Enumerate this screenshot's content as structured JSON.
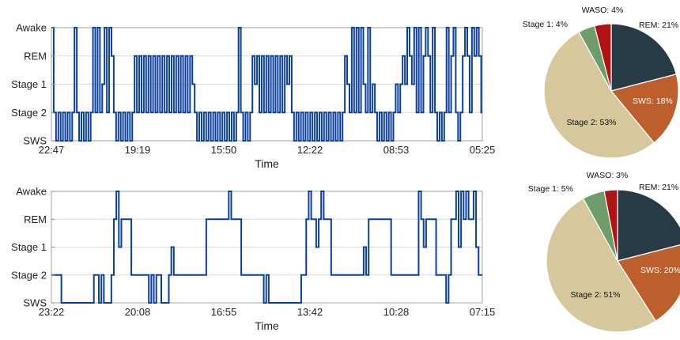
{
  "chart_data": [
    {
      "type": "line",
      "subtype": "step-hypnogram",
      "xlabel": "Time",
      "x_ticks": [
        "22:47",
        "19:19",
        "15:50",
        "12:22",
        "08:53",
        "05:25"
      ],
      "y_categories": [
        "SWS",
        "Stage 2",
        "Stage 1",
        "REM",
        "Awake"
      ],
      "ylim": [
        0,
        4
      ],
      "grid": true,
      "color": "#0a3f9e",
      "series": [
        {
          "levels": [
            4,
            4,
            1,
            1,
            0,
            0,
            1,
            1,
            0,
            0,
            1,
            1,
            0,
            0,
            1,
            1,
            0,
            0,
            1,
            1,
            4,
            4,
            1,
            1,
            0,
            0,
            1,
            1,
            0,
            0,
            1,
            1,
            0,
            0,
            1,
            1,
            4,
            4,
            1,
            1,
            4,
            4,
            1,
            1,
            2,
            2,
            4,
            4,
            1,
            1,
            4,
            4,
            3,
            3,
            1,
            1,
            0,
            0,
            1,
            1,
            0,
            0,
            1,
            1,
            0,
            0,
            1,
            1,
            0,
            0,
            1,
            1,
            3,
            3,
            1,
            1,
            3,
            3,
            1,
            1,
            3,
            3,
            1,
            1,
            3,
            3,
            1,
            1,
            3,
            3,
            1,
            1,
            3,
            3,
            1,
            1,
            3,
            3,
            1,
            1,
            3,
            3,
            1,
            1,
            3,
            3,
            1,
            1,
            3,
            3,
            1,
            1,
            3,
            3,
            1,
            1,
            3,
            3,
            1,
            1,
            3,
            3,
            2,
            2,
            1,
            1,
            0,
            0,
            1,
            1,
            0,
            0,
            1,
            1,
            0,
            0,
            1,
            1,
            0,
            0,
            1,
            1,
            0,
            0,
            1,
            1,
            0,
            0,
            1,
            1,
            0,
            0,
            1,
            1,
            0,
            0,
            1,
            1,
            0,
            0,
            1,
            1,
            4,
            4,
            1,
            1,
            0,
            0,
            1,
            1,
            0,
            0,
            1,
            1,
            3,
            3,
            2,
            2,
            3,
            3,
            1,
            1,
            3,
            3,
            1,
            1,
            3,
            3,
            1,
            1,
            3,
            3,
            1,
            1,
            3,
            3,
            1,
            1,
            3,
            3,
            1,
            1,
            3,
            3,
            2,
            2,
            3,
            3,
            1,
            1,
            0,
            0,
            1,
            1,
            0,
            0,
            1,
            1,
            0,
            0,
            1,
            1,
            0,
            0,
            1,
            1,
            0,
            0,
            1,
            1,
            0,
            0,
            1,
            1,
            0,
            0,
            1,
            1,
            0,
            0,
            1,
            1,
            0,
            0,
            1,
            1,
            0,
            0,
            1,
            1,
            0,
            0,
            1,
            1,
            3,
            3,
            2,
            2,
            1,
            1,
            4,
            4,
            1,
            1,
            4,
            4,
            1,
            1,
            4,
            4,
            2,
            2,
            1,
            1,
            4,
            4,
            1,
            1,
            2,
            2,
            1,
            1,
            0,
            0,
            1,
            1,
            0,
            0,
            1,
            1,
            0,
            0,
            1,
            1,
            0,
            0,
            1,
            1,
            2,
            2,
            1,
            1,
            2,
            2,
            3,
            3,
            2,
            2,
            4,
            4,
            3,
            3,
            2,
            2,
            4,
            4,
            1,
            1,
            4,
            4,
            1,
            1,
            3,
            3,
            4,
            4,
            3,
            3,
            1,
            1,
            4,
            4,
            1,
            1,
            0,
            0,
            1,
            1,
            0,
            0,
            1,
            1,
            4,
            4,
            1,
            1,
            3,
            3,
            4,
            4,
            1,
            1,
            0,
            0,
            1,
            1,
            3,
            3,
            4,
            4,
            3,
            3,
            1,
            1,
            4,
            4,
            3,
            3,
            4,
            4,
            3,
            3,
            1,
            1
          ],
          "step": 0.5
        }
      ]
    },
    {
      "type": "pie",
      "slices": [
        {
          "label": "REM",
          "value": 21,
          "text": "REM: 21%",
          "color": "#273b47"
        },
        {
          "label": "SWS",
          "value": 18,
          "text": "SWS: 18%",
          "color": "#bd5f2c"
        },
        {
          "label": "Stage 2",
          "value": 53,
          "text": "Stage 2: 53%",
          "color": "#d6c89c"
        },
        {
          "label": "Stage 1",
          "value": 4,
          "text": "Stage 1: 4%",
          "color": "#6f9c6b"
        },
        {
          "label": "WASO",
          "value": 4,
          "text": "WASO: 4%",
          "color": "#b01313"
        }
      ]
    },
    {
      "type": "line",
      "subtype": "step-hypnogram",
      "xlabel": "Time",
      "x_ticks": [
        "23:22",
        "20:08",
        "16:55",
        "13:42",
        "10:28",
        "07:15"
      ],
      "y_categories": [
        "SWS",
        "Stage 2",
        "Stage 1",
        "REM",
        "Awake"
      ],
      "ylim": [
        0,
        4
      ],
      "grid": true,
      "color": "#0a3f9e",
      "series": [
        {
          "levels": [
            1,
            1,
            1,
            1,
            1,
            1,
            1,
            1,
            0,
            0,
            0,
            0,
            0,
            0,
            0,
            0,
            0,
            0,
            0,
            0,
            0,
            0,
            0,
            0,
            0,
            0,
            0,
            0,
            0,
            0,
            0,
            0,
            0,
            0,
            1,
            1,
            1,
            1,
            0,
            0,
            1,
            1,
            0,
            0,
            0,
            0,
            0,
            0,
            1,
            1,
            3,
            3,
            4,
            4,
            2,
            2,
            3,
            3,
            3,
            3,
            3,
            3,
            3,
            3,
            1,
            1,
            1,
            1,
            1,
            1,
            1,
            1,
            1,
            1,
            1,
            1,
            1,
            1,
            0,
            0,
            1,
            1,
            0,
            0,
            1,
            1,
            1,
            1,
            0,
            0,
            0,
            0,
            0,
            0,
            1,
            1,
            2,
            2,
            1,
            1,
            1,
            1,
            1,
            1,
            1,
            1,
            1,
            1,
            1,
            1,
            1,
            1,
            1,
            1,
            1,
            1,
            1,
            1,
            1,
            1,
            1,
            1,
            1,
            1,
            3,
            3,
            3,
            3,
            3,
            3,
            3,
            3,
            3,
            3,
            3,
            3,
            3,
            3,
            3,
            3,
            3,
            3,
            4,
            4,
            3,
            3,
            3,
            3,
            3,
            3,
            3,
            3,
            1,
            1,
            1,
            1,
            1,
            1,
            1,
            1,
            1,
            1,
            1,
            1,
            1,
            1,
            1,
            1,
            1,
            1,
            0,
            0,
            1,
            1,
            0,
            0,
            0,
            0,
            0,
            0,
            0,
            0,
            0,
            0,
            0,
            0,
            0,
            0,
            0,
            0,
            0,
            0,
            0,
            0,
            0,
            0,
            0,
            0,
            0,
            0,
            1,
            1,
            1,
            1,
            3,
            3,
            4,
            4,
            3,
            3,
            3,
            3,
            2,
            2,
            3,
            3,
            4,
            4,
            3,
            3,
            3,
            3,
            3,
            3,
            1,
            1,
            1,
            1,
            1,
            1,
            1,
            1,
            1,
            1,
            1,
            1,
            1,
            1,
            1,
            1,
            1,
            1,
            1,
            1,
            1,
            1,
            1,
            1,
            1,
            1,
            2,
            2,
            1,
            1,
            3,
            3,
            3,
            3,
            3,
            3,
            3,
            3,
            3,
            3,
            3,
            3,
            3,
            3,
            3,
            3,
            3,
            3,
            1,
            1,
            1,
            1,
            1,
            1,
            1,
            1,
            1,
            1,
            1,
            1,
            1,
            1,
            1,
            1,
            1,
            1,
            1,
            1,
            1,
            1,
            4,
            4,
            3,
            3,
            2,
            2,
            3,
            3,
            3,
            3,
            3,
            3,
            3,
            3,
            1,
            1,
            1,
            1,
            1,
            1,
            1,
            1,
            0,
            0,
            1,
            1,
            3,
            3,
            3,
            3,
            4,
            4,
            2,
            2,
            4,
            4,
            3,
            3,
            4,
            4,
            3,
            3,
            3,
            3,
            4,
            4,
            2,
            2,
            1,
            1,
            1,
            1
          ],
          "step": 0.5
        }
      ]
    },
    {
      "type": "pie",
      "slices": [
        {
          "label": "REM",
          "value": 21,
          "text": "REM: 21%",
          "color": "#273b47"
        },
        {
          "label": "SWS",
          "value": 20,
          "text": "SWS: 20%",
          "color": "#bd5f2c"
        },
        {
          "label": "Stage 2",
          "value": 51,
          "text": "Stage 2: 51%",
          "color": "#d6c89c"
        },
        {
          "label": "Stage 1",
          "value": 5,
          "text": "Stage 1: 5%",
          "color": "#6f9c6b"
        },
        {
          "label": "WASO",
          "value": 3,
          "text": "WASO: 3%",
          "color": "#b01313"
        }
      ]
    }
  ]
}
